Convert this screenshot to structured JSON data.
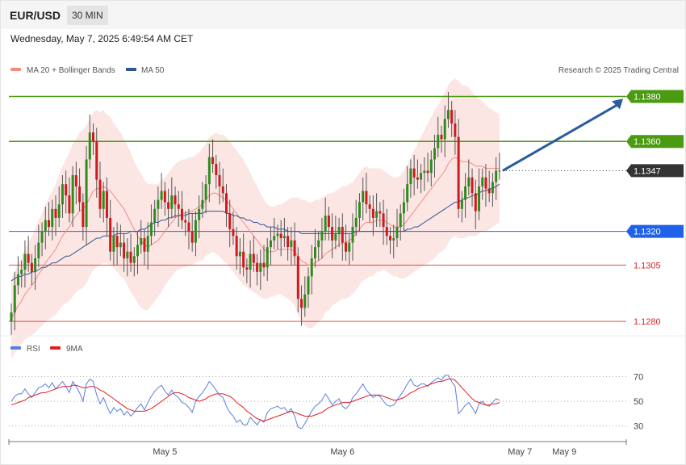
{
  "header": {
    "symbol": "EUR/USD",
    "timeframe": "30 MIN",
    "datetime": "Wednesday, May 7, 2025 6:49:54 AM CET"
  },
  "legend": {
    "bollinger": {
      "label": "MA 20 + Bollinger Bands",
      "color": "#f28b82"
    },
    "ma50": {
      "label": "MA 50",
      "color": "#2f5597"
    },
    "copyright": "Research © 2025 Trading Central"
  },
  "rsi_legend": {
    "rsi": {
      "label": "RSI",
      "color": "#5b7fde"
    },
    "ma9": {
      "label": "9MA",
      "color": "#e02020"
    }
  },
  "x_axis": {
    "ticks": [
      {
        "label": "May 5",
        "bar": 45
      },
      {
        "label": "May 6",
        "bar": 97
      },
      {
        "label": "May 7",
        "bar": 149
      },
      {
        "label": "May 9",
        "bar": 162
      }
    ]
  },
  "chart_data": [
    {
      "type": "candlestick",
      "title": "EUR/USD 30 MIN",
      "ylim": [
        1.1275,
        1.1387
      ],
      "grid": false,
      "levels": [
        {
          "value": 1.138,
          "label": "1.1380",
          "kind": "resistance",
          "color": "#4a9a12"
        },
        {
          "value": 1.136,
          "label": "1.1360",
          "kind": "resistance",
          "color": "#4a9a12"
        },
        {
          "value": 1.1347,
          "label": "1.1347",
          "kind": "last",
          "color": "#333333"
        },
        {
          "value": 1.132,
          "label": "1.1320",
          "kind": "pivot",
          "color": "#1f62e8"
        },
        {
          "value": 1.1305,
          "label": "1.1305",
          "kind": "support",
          "color": "#e02020"
        },
        {
          "value": 1.128,
          "label": "1.1280",
          "kind": "support",
          "color": "#e02020"
        }
      ],
      "forecast_arrow": {
        "from": 1.1347,
        "to": 1.1379,
        "color": "#2b5c9e"
      },
      "close_series": [
        1.1284,
        1.1296,
        1.1301,
        1.1303,
        1.131,
        1.1306,
        1.1302,
        1.1308,
        1.1315,
        1.132,
        1.1325,
        1.1322,
        1.133,
        1.1326,
        1.1332,
        1.1341,
        1.1336,
        1.1328,
        1.1345,
        1.134,
        1.1333,
        1.1322,
        1.1352,
        1.1364,
        1.136,
        1.1343,
        1.133,
        1.1338,
        1.1326,
        1.1311,
        1.1318,
        1.1313,
        1.1315,
        1.1308,
        1.1311,
        1.1306,
        1.1309,
        1.1314,
        1.1317,
        1.1311,
        1.1318,
        1.1324,
        1.133,
        1.1334,
        1.1338,
        1.1333,
        1.133,
        1.1336,
        1.1332,
        1.133,
        1.1325,
        1.1324,
        1.132,
        1.1315,
        1.1325,
        1.133,
        1.1334,
        1.1341,
        1.1353,
        1.135,
        1.1345,
        1.134,
        1.1337,
        1.1328,
        1.1321,
        1.1318,
        1.1309,
        1.1311,
        1.1304,
        1.1303,
        1.131,
        1.1306,
        1.1302,
        1.1306,
        1.1304,
        1.1313,
        1.1316,
        1.1318,
        1.1319,
        1.1317,
        1.1318,
        1.1313,
        1.1316,
        1.1309,
        1.129,
        1.1286,
        1.1292,
        1.13,
        1.1308,
        1.1313,
        1.1316,
        1.132,
        1.1327,
        1.1322,
        1.1316,
        1.1319,
        1.1322,
        1.1315,
        1.1311,
        1.1315,
        1.1322,
        1.1326,
        1.1333,
        1.1338,
        1.1332,
        1.133,
        1.1326,
        1.1329,
        1.1328,
        1.1322,
        1.1318,
        1.1316,
        1.1317,
        1.1322,
        1.1328,
        1.1333,
        1.1341,
        1.1348,
        1.1344,
        1.1343,
        1.1346,
        1.1347,
        1.1346,
        1.1352,
        1.1357,
        1.1363,
        1.1361,
        1.137,
        1.1374,
        1.1368,
        1.1362,
        1.133,
        1.1334,
        1.134,
        1.1344,
        1.1337,
        1.1329,
        1.134,
        1.1344,
        1.1339,
        1.1337,
        1.1342,
        1.1347,
        1.1347
      ],
      "ma20_series": [
        1.1281,
        1.1284,
        1.1287,
        1.1289,
        1.1292,
        1.1294,
        1.1296,
        1.1298,
        1.1301,
        1.1303,
        1.1306,
        1.1308,
        1.131,
        1.1312,
        1.1315,
        1.1318,
        1.132,
        1.1322,
        1.1325,
        1.1327,
        1.1329,
        1.133,
        1.1332,
        1.1335,
        1.1338,
        1.1339,
        1.1339,
        1.134,
        1.1339,
        1.1338,
        1.1336,
        1.1334,
        1.1332,
        1.133,
        1.1327,
        1.1324,
        1.1321,
        1.1318,
        1.1316,
        1.1314,
        1.1313,
        1.1314,
        1.1315,
        1.1316,
        1.1318,
        1.132,
        1.1322,
        1.1324,
        1.1326,
        1.1327,
        1.1328,
        1.1328,
        1.1329,
        1.1329,
        1.133,
        1.1331,
        1.1332,
        1.1334,
        1.1336,
        1.1337,
        1.1337,
        1.1336,
        1.1335,
        1.1334,
        1.1332,
        1.133,
        1.1328,
        1.1326,
        1.1324,
        1.1322,
        1.132,
        1.1318,
        1.1316,
        1.1314,
        1.1312,
        1.1311,
        1.1311,
        1.1311,
        1.1312,
        1.1312,
        1.1312,
        1.1312,
        1.1312,
        1.1311,
        1.1309,
        1.1307,
        1.1306,
        1.1305,
        1.1305,
        1.1306,
        1.1307,
        1.1308,
        1.131,
        1.1311,
        1.1312,
        1.1313,
        1.1314,
        1.1315,
        1.1315,
        1.1316,
        1.1317,
        1.1319,
        1.1321,
        1.1323,
        1.1324,
        1.1324,
        1.1324,
        1.1325,
        1.1325,
        1.1325,
        1.1324,
        1.1323,
        1.1322,
        1.1322,
        1.1322,
        1.1323,
        1.1325,
        1.1327,
        1.1329,
        1.1331,
        1.1333,
        1.1335,
        1.1337,
        1.1339,
        1.1341,
        1.1343,
        1.1345,
        1.1347,
        1.135,
        1.1352,
        1.1353,
        1.1352,
        1.1351,
        1.1351,
        1.1351,
        1.135,
        1.1349,
        1.1349,
        1.1349,
        1.1348,
        1.1348,
        1.1348,
        1.1348,
        1.1348
      ],
      "ma50_series": [
        1.1298,
        1.1299,
        1.13,
        1.13,
        1.1301,
        1.1301,
        1.1302,
        1.1302,
        1.1303,
        1.1304,
        1.1304,
        1.1305,
        1.1306,
        1.1306,
        1.1307,
        1.1308,
        1.1309,
        1.1309,
        1.131,
        1.1311,
        1.1312,
        1.1313,
        1.1314,
        1.1315,
        1.1316,
        1.1317,
        1.1317,
        1.1318,
        1.1318,
        1.1318,
        1.1318,
        1.1319,
        1.1319,
        1.1319,
        1.1319,
        1.132,
        1.132,
        1.132,
        1.1321,
        1.1321,
        1.1322,
        1.1323,
        1.1324,
        1.1324,
        1.1325,
        1.1325,
        1.1326,
        1.1326,
        1.1327,
        1.1327,
        1.1327,
        1.1327,
        1.1328,
        1.1328,
        1.1328,
        1.1328,
        1.1328,
        1.1329,
        1.1329,
        1.1329,
        1.1329,
        1.1329,
        1.1329,
        1.1328,
        1.1328,
        1.1327,
        1.1327,
        1.1326,
        1.1326,
        1.1325,
        1.1325,
        1.1324,
        1.1324,
        1.1323,
        1.1323,
        1.1322,
        1.1322,
        1.1322,
        1.1321,
        1.1321,
        1.1321,
        1.132,
        1.132,
        1.132,
        1.132,
        1.1319,
        1.1319,
        1.1319,
        1.1319,
        1.1319,
        1.1319,
        1.1319,
        1.1319,
        1.1319,
        1.1319,
        1.1319,
        1.1319,
        1.1319,
        1.1319,
        1.1319,
        1.1319,
        1.132,
        1.132,
        1.132,
        1.132,
        1.132,
        1.132,
        1.132,
        1.132,
        1.132,
        1.132,
        1.132,
        1.132,
        1.132,
        1.132,
        1.132,
        1.1321,
        1.1321,
        1.1322,
        1.1322,
        1.1323,
        1.1324,
        1.1325,
        1.1326,
        1.1327,
        1.1328,
        1.1329,
        1.133,
        1.1331,
        1.1332,
        1.1333,
        1.1333,
        1.1334,
        1.1335,
        1.1335,
        1.1336,
        1.1336,
        1.1337,
        1.1338,
        1.1338,
        1.1339,
        1.1339,
        1.134,
        1.1341
      ],
      "bb_width_series": [
        0.0018,
        0.0018,
        0.0019,
        0.0019,
        0.002,
        0.0021,
        0.0022,
        0.0023,
        0.0024,
        0.0025,
        0.0026,
        0.0027,
        0.0028,
        0.0029,
        0.003,
        0.0031,
        0.0032,
        0.0033,
        0.0034,
        0.0034,
        0.0035,
        0.0035,
        0.0035,
        0.0035,
        0.0035,
        0.0035,
        0.0034,
        0.0034,
        0.0033,
        0.0033,
        0.0032,
        0.0032,
        0.0032,
        0.0031,
        0.0031,
        0.0031,
        0.003,
        0.003,
        0.003,
        0.0029,
        0.0028,
        0.0027,
        0.0026,
        0.0025,
        0.0025,
        0.0024,
        0.0024,
        0.0024,
        0.0024,
        0.0024,
        0.0024,
        0.0024,
        0.0024,
        0.0024,
        0.0024,
        0.0024,
        0.0025,
        0.0025,
        0.0026,
        0.0026,
        0.0027,
        0.0027,
        0.0028,
        0.0028,
        0.0028,
        0.0028,
        0.0028,
        0.0028,
        0.0028,
        0.0027,
        0.0026,
        0.0025,
        0.0024,
        0.0023,
        0.0022,
        0.0021,
        0.002,
        0.002,
        0.002,
        0.002,
        0.0021,
        0.0022,
        0.0023,
        0.0024,
        0.0026,
        0.0027,
        0.0028,
        0.0028,
        0.0028,
        0.0028,
        0.0027,
        0.0027,
        0.0026,
        0.0026,
        0.0025,
        0.0025,
        0.0025,
        0.0025,
        0.0025,
        0.0025,
        0.0025,
        0.0025,
        0.0025,
        0.0025,
        0.0025,
        0.0024,
        0.0024,
        0.0023,
        0.0023,
        0.0022,
        0.0022,
        0.0022,
        0.0022,
        0.0022,
        0.0023,
        0.0024,
        0.0025,
        0.0026,
        0.0027,
        0.0028,
        0.0029,
        0.003,
        0.0031,
        0.0032,
        0.0033,
        0.0033,
        0.0034,
        0.0035,
        0.0035,
        0.0035,
        0.0035,
        0.0035,
        0.0034,
        0.0034,
        0.0033,
        0.0032,
        0.0031,
        0.003,
        0.0029,
        0.0028,
        0.0027,
        0.0026,
        0.0025,
        0.0024,
        0.0024
      ]
    },
    {
      "type": "line",
      "title": "RSI",
      "ylim": [
        22,
        84
      ],
      "reference_lines": [
        {
          "value": 70,
          "label": "70"
        },
        {
          "value": 50,
          "label": "50"
        },
        {
          "value": 30,
          "label": "30"
        }
      ],
      "series": [
        {
          "name": "RSI",
          "color": "#5b7fde",
          "values": [
            50,
            54,
            56,
            56,
            60,
            56,
            53,
            57,
            61,
            62,
            64,
            61,
            65,
            60,
            63,
            66,
            62,
            57,
            66,
            62,
            57,
            50,
            64,
            68,
            66,
            55,
            48,
            53,
            46,
            40,
            45,
            42,
            44,
            39,
            42,
            38,
            41,
            45,
            48,
            43,
            49,
            54,
            58,
            61,
            63,
            58,
            55,
            59,
            55,
            53,
            49,
            48,
            45,
            41,
            50,
            54,
            57,
            61,
            66,
            63,
            59,
            55,
            53,
            46,
            41,
            38,
            33,
            35,
            31,
            31,
            37,
            34,
            31,
            35,
            33,
            41,
            44,
            45,
            46,
            44,
            45,
            41,
            44,
            38,
            29,
            28,
            32,
            37,
            42,
            46,
            48,
            51,
            56,
            52,
            47,
            50,
            52,
            46,
            44,
            47,
            53,
            56,
            60,
            64,
            59,
            56,
            53,
            55,
            54,
            50,
            47,
            46,
            47,
            51,
            55,
            59,
            64,
            68,
            63,
            62,
            64,
            64,
            62,
            65,
            67,
            69,
            67,
            71,
            71,
            66,
            62,
            40,
            43,
            47,
            49,
            45,
            40,
            48,
            50,
            47,
            46,
            49,
            52,
            51
          ]
        },
        {
          "name": "9MA",
          "color": "#e02020",
          "values": [
            47,
            48,
            49,
            50,
            51,
            53,
            54,
            55,
            56,
            57,
            57,
            58,
            59,
            60,
            61,
            62,
            62,
            62,
            63,
            63,
            62,
            61,
            61,
            62,
            62,
            61,
            59,
            58,
            56,
            54,
            52,
            50,
            48,
            46,
            44,
            43,
            42,
            42,
            42,
            42,
            43,
            44,
            46,
            48,
            50,
            52,
            54,
            56,
            57,
            57,
            56,
            55,
            53,
            52,
            51,
            50,
            51,
            52,
            54,
            55,
            56,
            56,
            56,
            55,
            54,
            52,
            49,
            47,
            45,
            42,
            40,
            38,
            36,
            35,
            34,
            35,
            36,
            37,
            38,
            39,
            40,
            41,
            42,
            41,
            40,
            39,
            38,
            38,
            38,
            39,
            40,
            41,
            43,
            45,
            46,
            47,
            48,
            49,
            49,
            49,
            50,
            51,
            52,
            53,
            54,
            55,
            55,
            55,
            55,
            54,
            53,
            52,
            51,
            51,
            52,
            53,
            55,
            57,
            58,
            60,
            61,
            62,
            63,
            64,
            65,
            66,
            66,
            67,
            68,
            68,
            67,
            64,
            61,
            58,
            55,
            52,
            50,
            49,
            48,
            47,
            47,
            48,
            48,
            49
          ]
        }
      ]
    }
  ]
}
